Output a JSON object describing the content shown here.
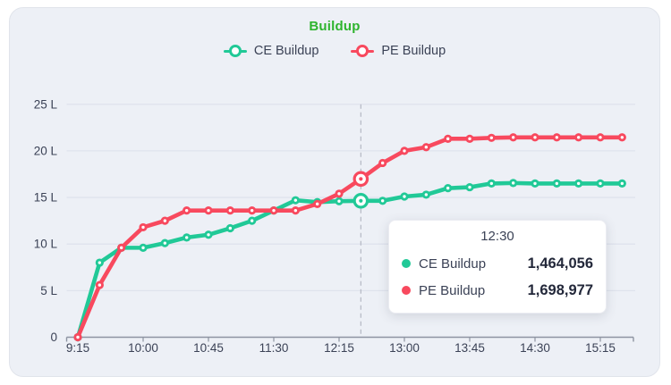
{
  "header": {
    "title": "Buildup"
  },
  "legend": {
    "items": [
      {
        "label": "CE Buildup",
        "color": "#21c997"
      },
      {
        "label": "PE Buildup",
        "color": "#f8495e"
      }
    ]
  },
  "tooltip": {
    "title": "12:30",
    "rows": [
      {
        "label": "CE Buildup",
        "value": "1,464,056",
        "color": "#21c997"
      },
      {
        "label": "PE Buildup",
        "value": "1,698,977",
        "color": "#f8495e"
      }
    ]
  },
  "chart_data": {
    "type": "line",
    "title": "Buildup",
    "xlabel": "",
    "ylabel": "",
    "ylim": [
      0,
      2500000
    ],
    "grid": "horizontal",
    "legend_position": "top-center",
    "x": [
      "9:15",
      "9:30",
      "9:45",
      "10:00",
      "10:15",
      "10:30",
      "10:45",
      "11:00",
      "11:15",
      "11:30",
      "11:45",
      "12:00",
      "12:15",
      "12:30",
      "12:45",
      "13:00",
      "13:15",
      "13:30",
      "13:45",
      "14:00",
      "14:15",
      "14:30",
      "14:45",
      "15:00",
      "15:15",
      "15:30"
    ],
    "series": [
      {
        "name": "CE Buildup",
        "color": "#21c997",
        "values": [
          0,
          800000,
          960000,
          960000,
          1010000,
          1070000,
          1100000,
          1170000,
          1250000,
          1360000,
          1470000,
          1450000,
          1460000,
          1464056,
          1464000,
          1510000,
          1530000,
          1600000,
          1610000,
          1650000,
          1655000,
          1650000,
          1650000,
          1650000,
          1650000,
          1650000
        ]
      },
      {
        "name": "PE Buildup",
        "color": "#f8495e",
        "values": [
          0,
          560000,
          960000,
          1180000,
          1250000,
          1360000,
          1360000,
          1360000,
          1360000,
          1360000,
          1360000,
          1430000,
          1540000,
          1698977,
          1870000,
          2000000,
          2040000,
          2130000,
          2130000,
          2140000,
          2145000,
          2145000,
          2145000,
          2145000,
          2145000,
          2145000
        ]
      }
    ],
    "x_ticks": [
      "9:15",
      "10:00",
      "10:45",
      "11:30",
      "12:15",
      "13:00",
      "13:45",
      "14:30",
      "15:15"
    ],
    "y_ticks": [
      {
        "label": "0",
        "value": 0
      },
      {
        "label": "5 L",
        "value": 500000
      },
      {
        "label": "10 L",
        "value": 1000000
      },
      {
        "label": "15 L",
        "value": 1500000
      },
      {
        "label": "20 L",
        "value": 2000000
      },
      {
        "label": "25 L",
        "value": 2500000
      }
    ],
    "hover": {
      "time": "12:30"
    },
    "colors": {
      "background": "#edf0f6",
      "gridline": "#dfe3ed",
      "axis": "#8d93a1",
      "label": "#3b4256",
      "crosshair": "#b4b8c4",
      "title": "#2eb42e"
    }
  }
}
